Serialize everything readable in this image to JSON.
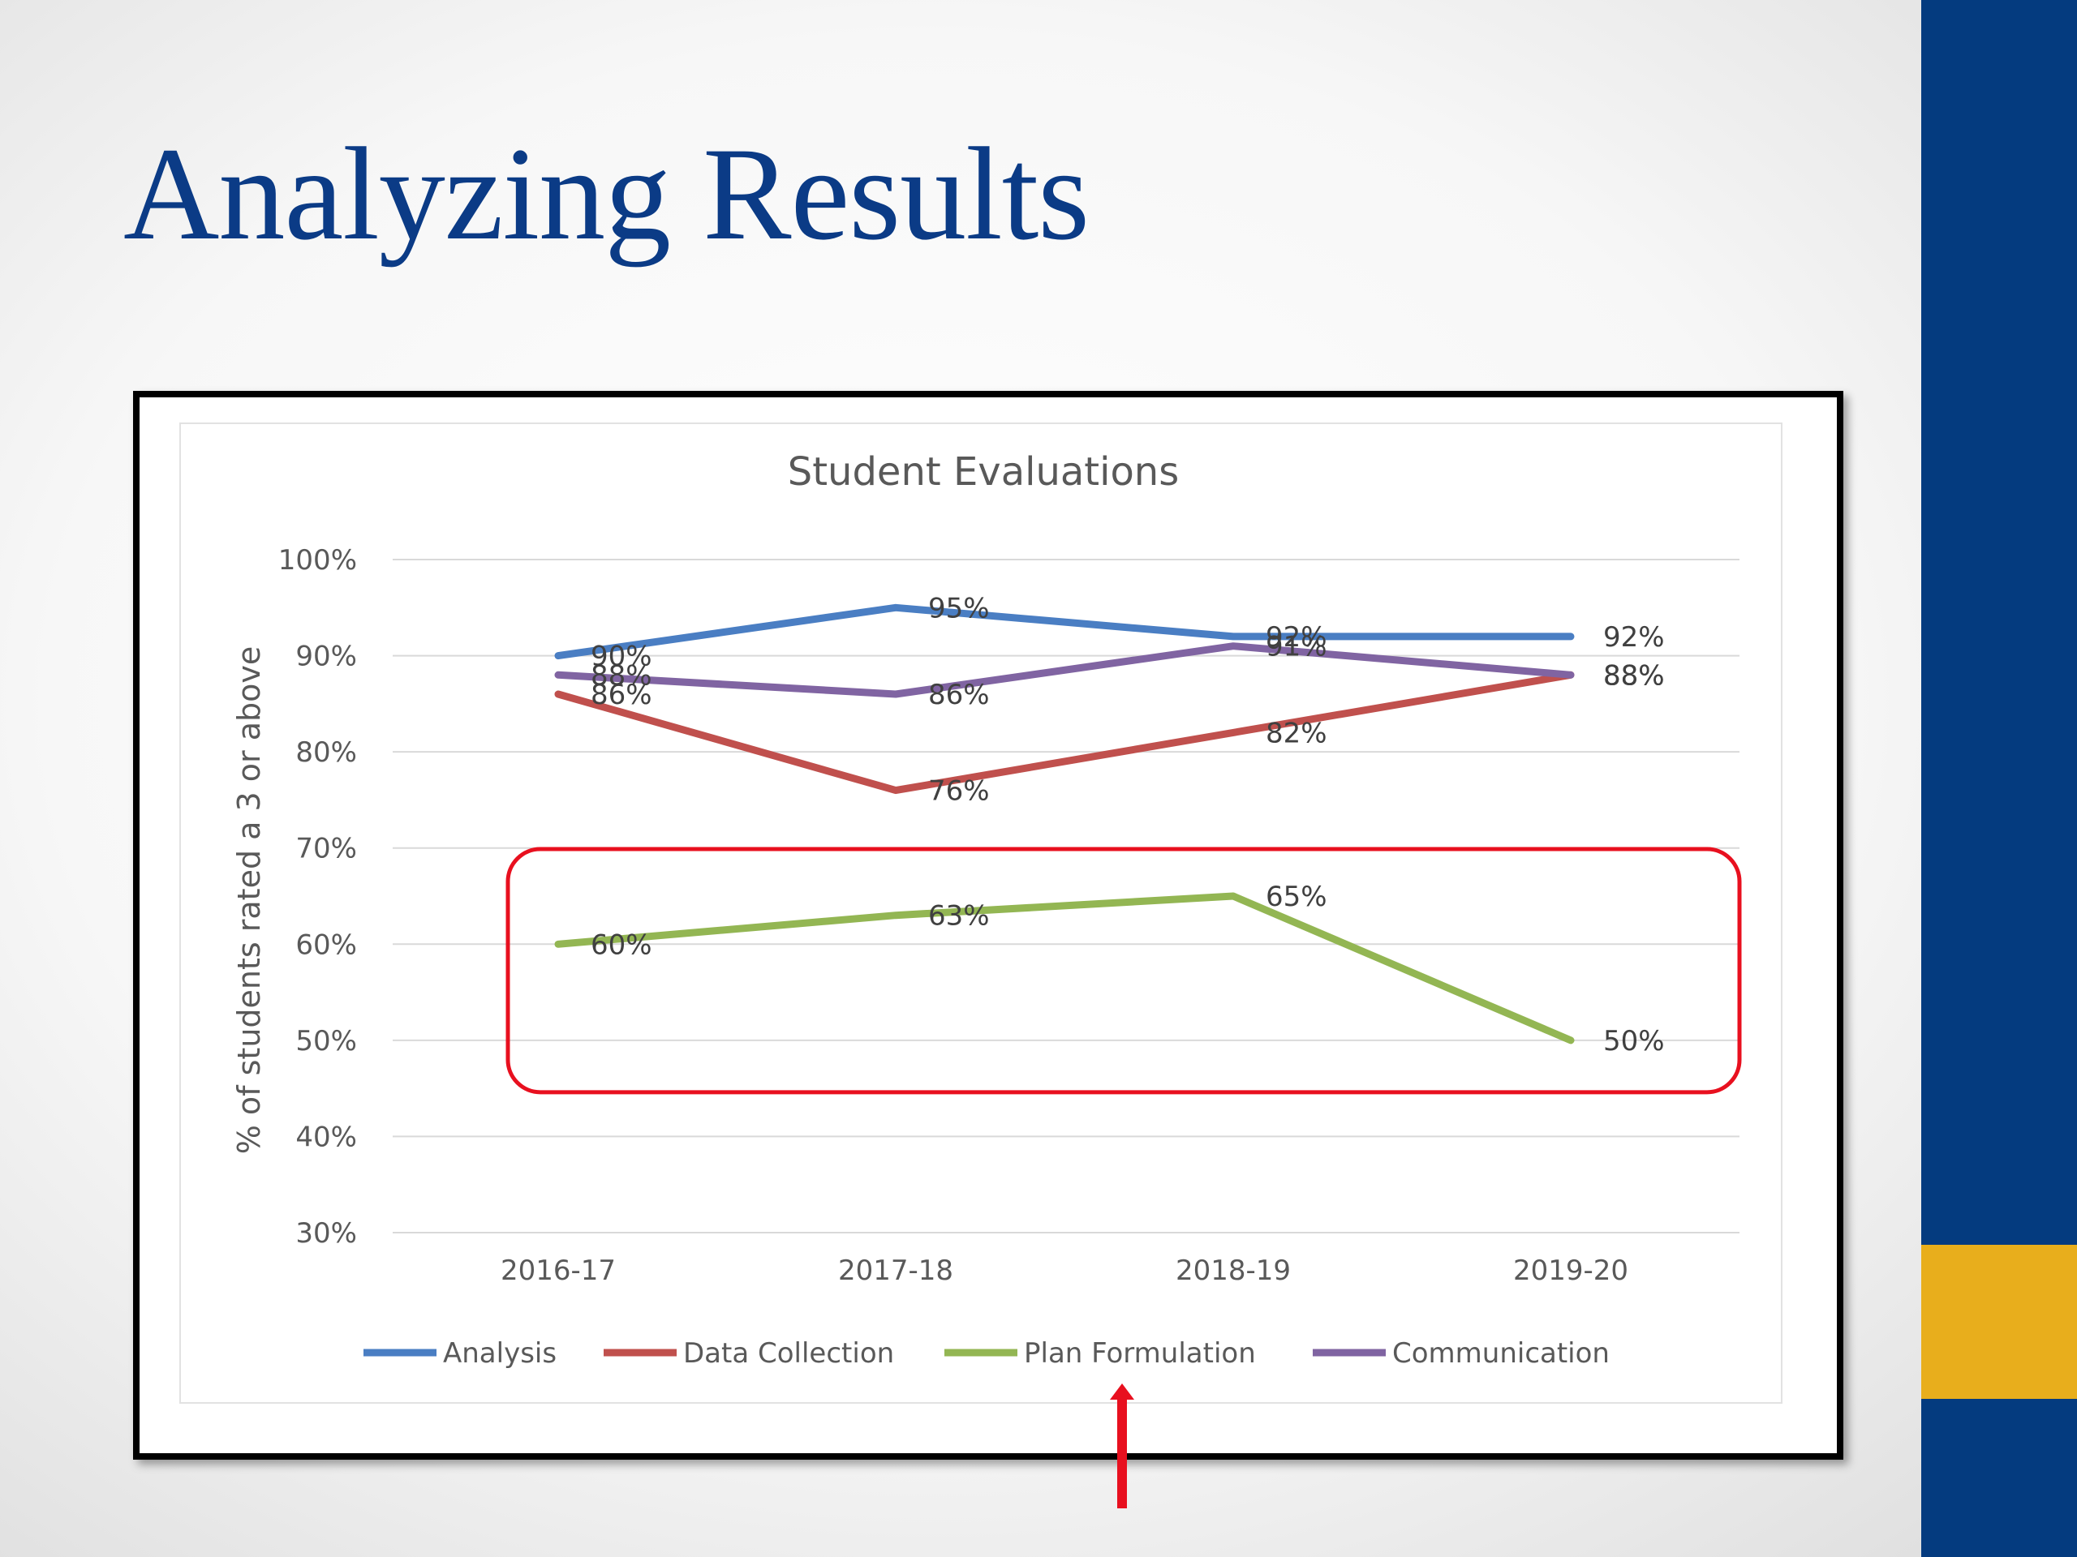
{
  "slide": {
    "title": "Analyzing Results"
  },
  "colors": {
    "accent_bar": "#043b7f",
    "accent_gold": "#e8ae1c",
    "title": "#0b3b86",
    "highlight": "#e8101f"
  },
  "chart_data": {
    "type": "line",
    "title": "Student Evaluations",
    "xlabel": "",
    "ylabel": "% of students rated a 3 or above",
    "categories": [
      "2016-17",
      "2017-18",
      "2018-19",
      "2019-20"
    ],
    "ylim": [
      30,
      100
    ],
    "yticks": [
      "30%",
      "40%",
      "50%",
      "60%",
      "70%",
      "80%",
      "90%",
      "100%"
    ],
    "grid": true,
    "legend_position": "bottom",
    "series": [
      {
        "name": "Analysis",
        "color": "#4a7ec3",
        "values": [
          90,
          95,
          92,
          92
        ],
        "labels": [
          "90%",
          "95%",
          "92%",
          "92%"
        ]
      },
      {
        "name": "Data Collection",
        "color": "#c0504d",
        "values": [
          86,
          76,
          82,
          88
        ],
        "labels": [
          "86%",
          "76%",
          "82%",
          "88%"
        ]
      },
      {
        "name": "Plan Formulation",
        "color": "#93b653",
        "values": [
          60,
          63,
          65,
          50
        ],
        "labels": [
          "60%",
          "63%",
          "65%",
          "50%"
        ]
      },
      {
        "name": "Communication",
        "color": "#8064a2",
        "values": [
          88,
          86,
          91,
          88
        ],
        "labels": [
          "88%",
          "86%",
          "91%",
          "88%"
        ]
      }
    ],
    "annotation": {
      "highlight_series": "Plan Formulation",
      "highlight_color": "#e8101f"
    }
  }
}
